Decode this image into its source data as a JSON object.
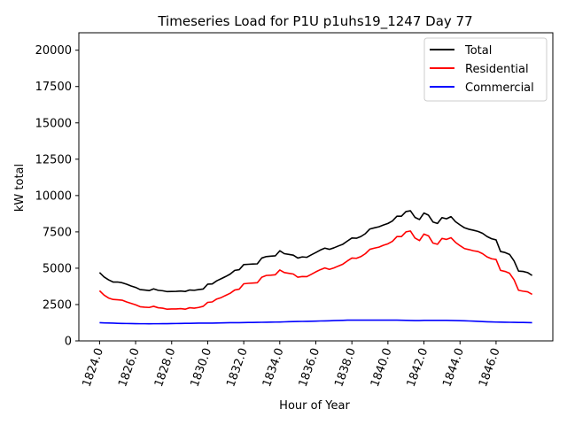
{
  "chart_data": {
    "type": "line",
    "title": "Timeseries Load for P1U p1uhs19_1247  Day 77",
    "xlabel": "Hour of Year",
    "ylabel": "kW total",
    "xlim": [
      1822.85,
      1849.15
    ],
    "ylim": [
      0,
      21200
    ],
    "x_ticks": [
      1824,
      1826,
      1828,
      1830,
      1832,
      1834,
      1836,
      1838,
      1840,
      1842,
      1844,
      1846
    ],
    "x_tick_labels": [
      "1824.0",
      "1826.0",
      "1828.0",
      "1830.0",
      "1832.0",
      "1834.0",
      "1836.0",
      "1838.0",
      "1840.0",
      "1842.0",
      "1844.0",
      "1846.0"
    ],
    "y_ticks": [
      0,
      2500,
      5000,
      7500,
      10000,
      12500,
      15000,
      17500,
      20000
    ],
    "y_tick_labels": [
      "0",
      "2500",
      "5000",
      "7500",
      "10000",
      "12500",
      "15000",
      "17500",
      "20000"
    ],
    "legend_position": "top-right",
    "x_start": 1824.0,
    "x_step": 0.25,
    "series": [
      {
        "name": "Total",
        "color": "#000000",
        "values": [
          4700,
          4400,
          4200,
          4050,
          4050,
          4000,
          3900,
          3780,
          3680,
          3530,
          3500,
          3460,
          3580,
          3480,
          3450,
          3390,
          3400,
          3410,
          3430,
          3400,
          3500,
          3480,
          3530,
          3570,
          3900,
          3920,
          4130,
          4280,
          4430,
          4600,
          4850,
          4900,
          5250,
          5270,
          5290,
          5300,
          5700,
          5800,
          5830,
          5850,
          6200,
          6000,
          5950,
          5900,
          5700,
          5780,
          5750,
          5920,
          6080,
          6250,
          6380,
          6300,
          6400,
          6530,
          6650,
          6870,
          7080,
          7060,
          7180,
          7380,
          7700,
          7780,
          7850,
          7970,
          8080,
          8250,
          8580,
          8580,
          8900,
          8950,
          8500,
          8350,
          8800,
          8650,
          8180,
          8080,
          8480,
          8400,
          8550,
          8200,
          7980,
          7780,
          7680,
          7610,
          7530,
          7400,
          7180,
          7030,
          6950,
          6150,
          6080,
          5950,
          5500,
          4800,
          4780,
          4700,
          4500
        ]
      },
      {
        "name": "Residential",
        "color": "#ff0000",
        "values": [
          3450,
          3150,
          2950,
          2850,
          2830,
          2800,
          2680,
          2580,
          2480,
          2350,
          2320,
          2300,
          2380,
          2280,
          2250,
          2180,
          2200,
          2200,
          2220,
          2180,
          2280,
          2250,
          2300,
          2380,
          2650,
          2680,
          2880,
          2980,
          3130,
          3280,
          3500,
          3560,
          3930,
          3960,
          3980,
          4000,
          4380,
          4500,
          4520,
          4550,
          4880,
          4700,
          4650,
          4600,
          4380,
          4430,
          4420,
          4580,
          4750,
          4900,
          5020,
          4920,
          5020,
          5150,
          5280,
          5500,
          5700,
          5680,
          5800,
          6000,
          6300,
          6380,
          6450,
          6580,
          6680,
          6850,
          7180,
          7180,
          7500,
          7560,
          7080,
          6900,
          7350,
          7230,
          6730,
          6650,
          7050,
          6980,
          7100,
          6780,
          6550,
          6350,
          6280,
          6200,
          6150,
          6000,
          5780,
          5650,
          5600,
          4850,
          4780,
          4650,
          4200,
          3480,
          3420,
          3380,
          3200
        ]
      },
      {
        "name": "Commercial",
        "color": "#0000ff",
        "values": [
          1250,
          1240,
          1230,
          1220,
          1210,
          1200,
          1195,
          1190,
          1185,
          1180,
          1180,
          1175,
          1180,
          1180,
          1185,
          1185,
          1190,
          1195,
          1200,
          1205,
          1210,
          1215,
          1220,
          1220,
          1220,
          1225,
          1230,
          1240,
          1245,
          1250,
          1255,
          1255,
          1260,
          1265,
          1270,
          1275,
          1280,
          1285,
          1290,
          1295,
          1300,
          1310,
          1320,
          1330,
          1335,
          1340,
          1345,
          1350,
          1360,
          1370,
          1375,
          1385,
          1395,
          1405,
          1415,
          1425,
          1430,
          1430,
          1430,
          1430,
          1430,
          1430,
          1430,
          1430,
          1430,
          1430,
          1425,
          1420,
          1410,
          1405,
          1395,
          1400,
          1410,
          1415,
          1415,
          1415,
          1415,
          1410,
          1405,
          1400,
          1390,
          1380,
          1370,
          1360,
          1345,
          1330,
          1315,
          1305,
          1295,
          1290,
          1285,
          1280,
          1275,
          1270,
          1265,
          1260,
          1255
        ]
      }
    ]
  }
}
